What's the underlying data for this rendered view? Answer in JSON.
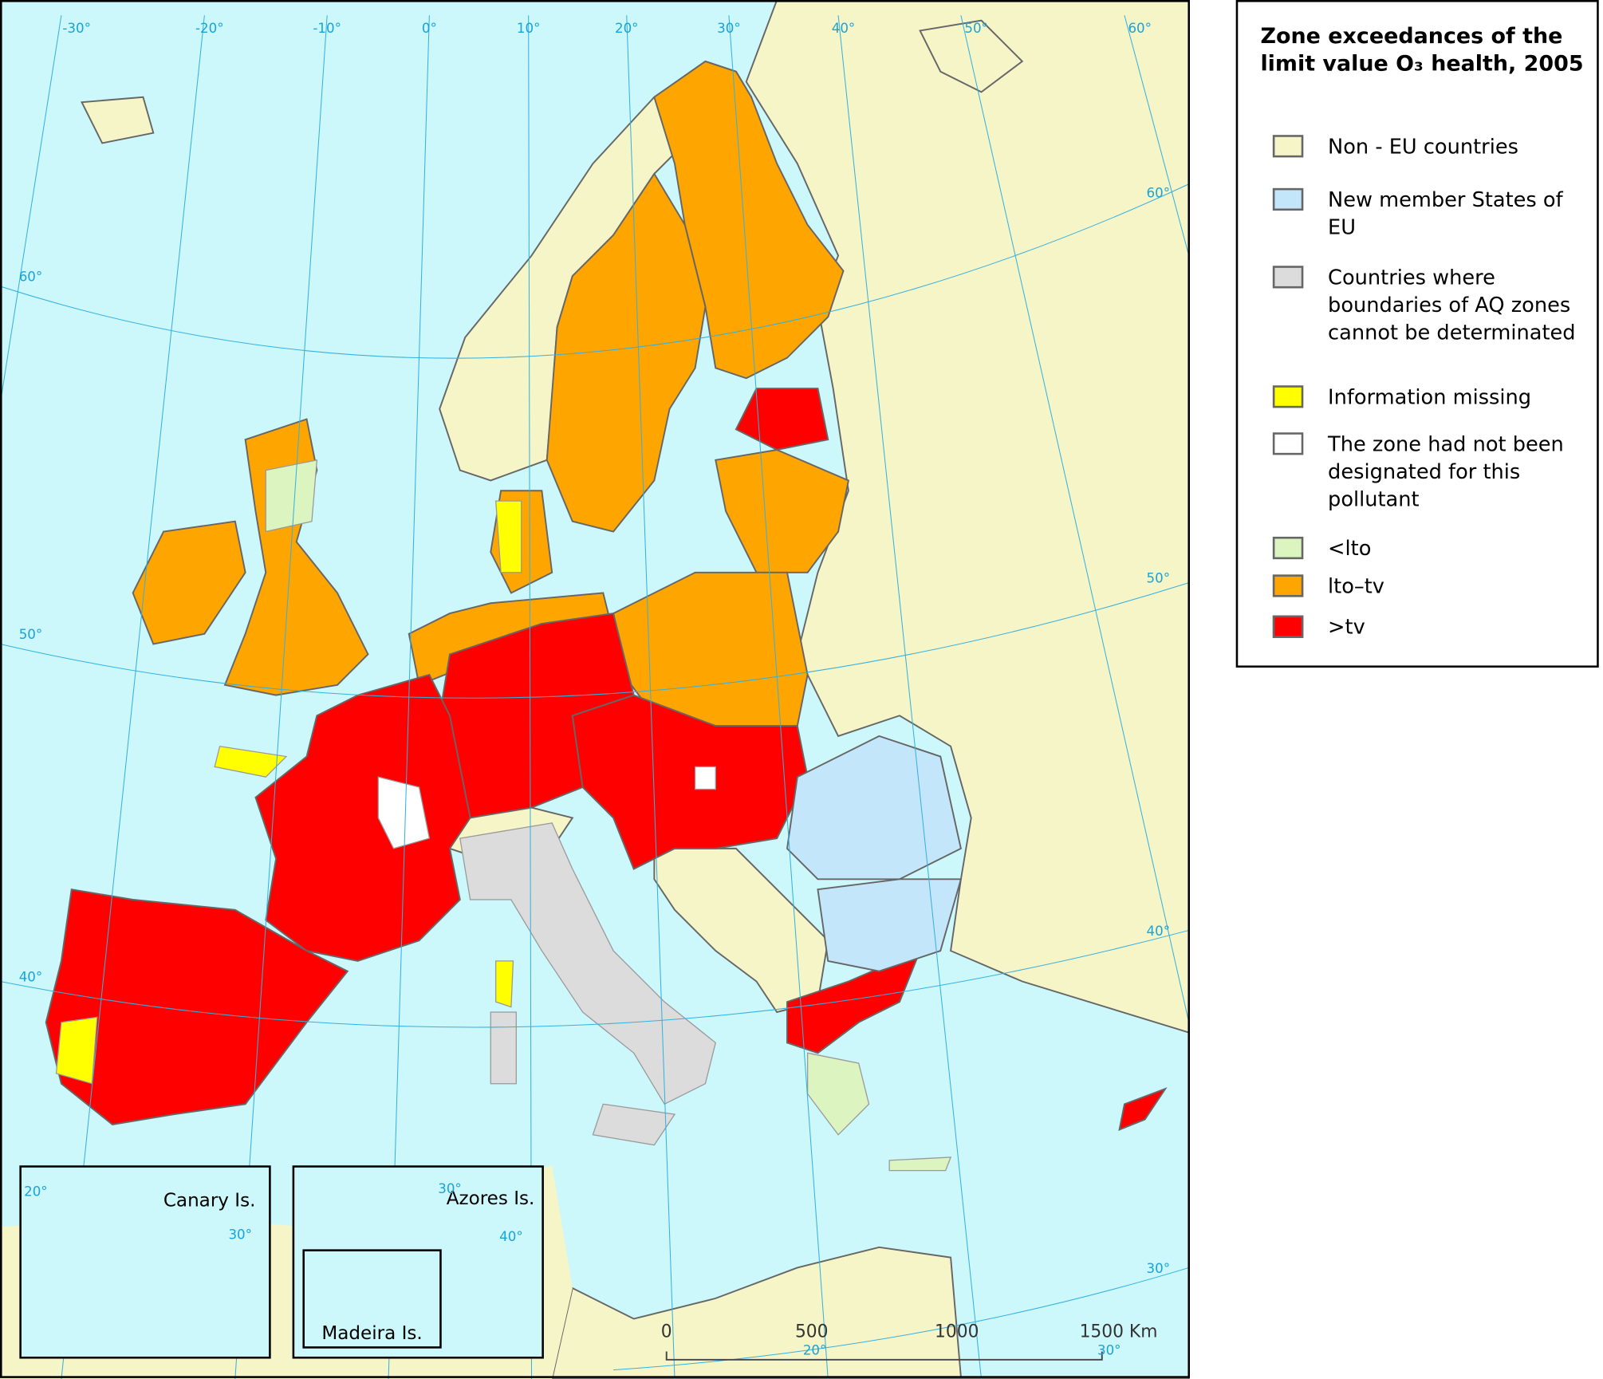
{
  "map": {
    "graticule_labels": [
      "-30°",
      "-20°",
      "-10°",
      "0°",
      "10°",
      "20°",
      "30°",
      "40°",
      "50°",
      "60°",
      "60°",
      "60°",
      "50°",
      "50°",
      "40°",
      "40°",
      "30°",
      "20°",
      "30°"
    ],
    "insets": [
      {
        "name": "Canary Is.",
        "graticule_labels": [
          "20°",
          "30°"
        ]
      },
      {
        "name": "Azores Is.",
        "graticule_labels": [
          "30°",
          "40°"
        ]
      },
      {
        "name": "Madeira Is."
      }
    ],
    "scale_bar": {
      "labels": [
        "0",
        "500",
        "1000",
        "1500 Km"
      ]
    }
  },
  "legend": {
    "title": "Zone exceedances of the limit value O₃ health, 2005",
    "items": [
      {
        "label": "Non - EU countries",
        "color": "#f5f5c8"
      },
      {
        "label": "New member States of EU",
        "color": "#c4e6fb"
      },
      {
        "label": "Countries where boundaries of AQ zones cannot be determinated",
        "color": "#dcdcdc"
      },
      {
        "label": "Information missing",
        "color": "#ffff00"
      },
      {
        "label": "The zone had not been designated for this pollutant",
        "color": "#ffffff"
      },
      {
        "label": "<lto",
        "color": "#dcf5c0"
      },
      {
        "label": "lto–tv",
        "color": "#ffa500"
      },
      {
        "label": ">tv",
        "color": "#ff0000"
      }
    ]
  }
}
